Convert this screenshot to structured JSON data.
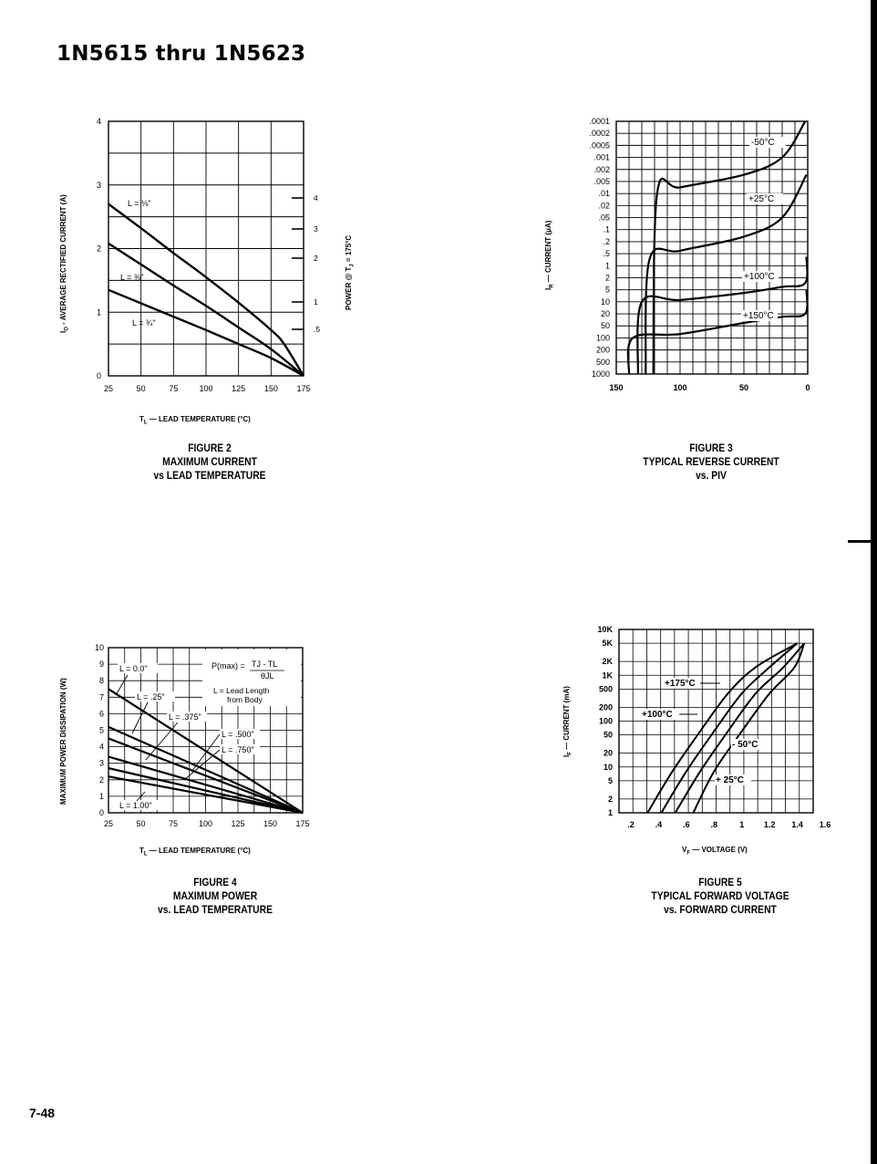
{
  "header": {
    "title": "1N5615 thru 1N5623"
  },
  "footer": {
    "page_number": "7-48"
  },
  "figures": {
    "fig2": {
      "caption": [
        "FIGURE 2",
        "MAXIMUM CURRENT",
        "vs LEAD TEMPERATURE"
      ]
    },
    "fig3": {
      "caption": [
        "FIGURE 3",
        "TYPICAL REVERSE CURRENT",
        "vs. PIV"
      ]
    },
    "fig4": {
      "caption": [
        "FIGURE 4",
        "MAXIMUM POWER",
        "vs. LEAD TEMPERATURE"
      ]
    },
    "fig5": {
      "caption": [
        "FIGURE 5",
        "TYPICAL FORWARD VOLTAGE",
        "vs. FORWARD CURRENT"
      ]
    }
  },
  "chart_data": [
    {
      "id": "fig2",
      "type": "line",
      "xlabel": "T_L — LEAD TEMPERATURE (°C)",
      "ylabel": "I_O - AVERAGE RECTIFIED CURRENT (A)",
      "y2label": "POWER @ T_J = 175°C",
      "xlim": [
        25,
        175
      ],
      "ylim": [
        0,
        4
      ],
      "x_ticks": [
        "25",
        "50",
        "75",
        "100",
        "125",
        "150",
        "175"
      ],
      "y_ticks": [
        "0",
        "1",
        "2",
        "3",
        "4"
      ],
      "y2_ticks": [
        "4",
        "3",
        "2",
        "1",
        ".5"
      ],
      "grid": true,
      "series": [
        {
          "name": "L = 1/8\"",
          "x": [
            25,
            50,
            75,
            100,
            125,
            150,
            160,
            175
          ],
          "y": [
            2.7,
            2.32,
            1.93,
            1.55,
            1.15,
            0.72,
            0.5,
            0
          ]
        },
        {
          "name": "L = 3/8\"",
          "x": [
            25,
            50,
            75,
            100,
            125,
            150,
            175
          ],
          "y": [
            2.08,
            1.75,
            1.42,
            1.1,
            0.76,
            0.42,
            0
          ]
        },
        {
          "name": "L = 3/4\"",
          "x": [
            25,
            50,
            75,
            100,
            125,
            150,
            175
          ],
          "y": [
            1.35,
            1.14,
            0.93,
            0.72,
            0.5,
            0.28,
            0
          ]
        }
      ],
      "annotations": [
        "L = 1/8\"",
        "L = 3/8\"",
        "L = 3/4\""
      ]
    },
    {
      "id": "fig3",
      "type": "line",
      "xlabel": "",
      "ylabel": "I_R - CURRENT (μA)",
      "x_ticks": [
        "150",
        "100",
        "50",
        "0"
      ],
      "xlim": [
        150,
        0
      ],
      "y_ticks": [
        ".0001",
        ".0002",
        ".0005",
        ".001",
        ".002",
        ".005",
        ".01",
        ".02",
        ".05",
        ".1",
        ".2",
        ".5",
        "1",
        "2",
        "5",
        "10",
        "20",
        "50",
        "100",
        "200",
        "500",
        "1000"
      ],
      "y_scale": "log",
      "grid": true,
      "series": [
        {
          "name": "-50°C",
          "x": [
            121,
            118,
            100,
            50,
            20,
            2
          ],
          "y": [
            1000,
            0.01,
            0.007,
            0.003,
            0.001,
            0.0001
          ]
        },
        {
          "name": "+25°C",
          "x": [
            127,
            124,
            100,
            50,
            20,
            1
          ],
          "y": [
            1000,
            0.7,
            0.4,
            0.15,
            0.05,
            0.003
          ]
        },
        {
          "name": "+100°C",
          "x": [
            133,
            130,
            100,
            50,
            20,
            2,
            1
          ],
          "y": [
            1000,
            10,
            9,
            6,
            4,
            3,
            0.6
          ]
        },
        {
          "name": "+150°C",
          "x": [
            140,
            137,
            100,
            50,
            20,
            2,
            1
          ],
          "y": [
            1000,
            100,
            80,
            40,
            25,
            20,
            5
          ]
        }
      ],
      "annotations": [
        "-50°C",
        "+25°C",
        "+100°C",
        "+150°C"
      ]
    },
    {
      "id": "fig4",
      "type": "line",
      "xlabel": "T_L — LEAD TEMPERATURE (°C)",
      "ylabel": "MAXIMUM POWER DISSIPATION (W)",
      "xlim": [
        25,
        175
      ],
      "ylim": [
        0,
        10
      ],
      "x_ticks": [
        "25",
        "50",
        "75",
        "100",
        "125",
        "150",
        "175"
      ],
      "y_ticks": [
        "0",
        "1",
        "2",
        "3",
        "4",
        "5",
        "6",
        "7",
        "8",
        "9",
        "10"
      ],
      "grid": true,
      "series": [
        {
          "name": "L = 0.0\"",
          "x": [
            25,
            175
          ],
          "y": [
            7.5,
            0
          ]
        },
        {
          "name": "L = .25\"",
          "x": [
            25,
            175
          ],
          "y": [
            5.2,
            0
          ]
        },
        {
          "name": "L = .375\"",
          "x": [
            25,
            175
          ],
          "y": [
            4.5,
            0
          ]
        },
        {
          "name": "L = .500\"",
          "x": [
            25,
            175
          ],
          "y": [
            3.4,
            0
          ]
        },
        {
          "name": "L = .750\"",
          "x": [
            25,
            175
          ],
          "y": [
            2.7,
            0
          ]
        },
        {
          "name": "L = 1.00\"",
          "x": [
            25,
            175
          ],
          "y": [
            2.2,
            0
          ]
        }
      ],
      "annotations": [
        "L = 0.0\"",
        "L = .25\"",
        "L = .375\"",
        "L = .500\"",
        "L = .750\"",
        "L = 1.00\""
      ],
      "formula": {
        "lhs": "P(max) = ",
        "numerator": "TJ - TL",
        "denominator": "θJL",
        "note1": "L = Lead Length",
        "note2": "from Body"
      }
    },
    {
      "id": "fig5",
      "type": "line",
      "xlabel": "V_F — VOLTAGE (V)",
      "ylabel": "I_F — CURRENT (mA)",
      "xlim": [
        0.2,
        1.6
      ],
      "x_ticks": [
        ".2",
        ".4",
        ".6",
        ".8",
        "1",
        "1.2",
        "1.4",
        "1.6"
      ],
      "y_ticks": [
        "1",
        "2",
        "5",
        "10",
        "20",
        "50",
        "100",
        "200",
        "500",
        "1K",
        "2K",
        "5K",
        "10K"
      ],
      "y_scale": "log",
      "grid": true,
      "series": [
        {
          "name": "+175°C",
          "x": [
            0.32,
            0.5,
            0.7,
            0.9,
            1.1,
            1.4
          ],
          "y": [
            1,
            8,
            60,
            400,
            1500,
            5000
          ]
        },
        {
          "name": "+100°C",
          "x": [
            0.42,
            0.6,
            0.8,
            1.0,
            1.2,
            1.4
          ],
          "y": [
            1,
            8,
            60,
            400,
            1500,
            5000
          ]
        },
        {
          "name": "- 50°C",
          "x": [
            0.52,
            0.7,
            0.9,
            1.1,
            1.3,
            1.45
          ],
          "y": [
            1,
            8,
            60,
            400,
            1500,
            5000
          ]
        },
        {
          "name": "+ 25°C",
          "x": [
            0.65,
            0.8,
            1.0,
            1.2,
            1.38,
            1.45
          ],
          "y": [
            1,
            8,
            60,
            400,
            1500,
            5000
          ]
        }
      ],
      "annotations": [
        "+175°C",
        "+100°C",
        "- 50°C",
        "+ 25°C"
      ]
    }
  ]
}
